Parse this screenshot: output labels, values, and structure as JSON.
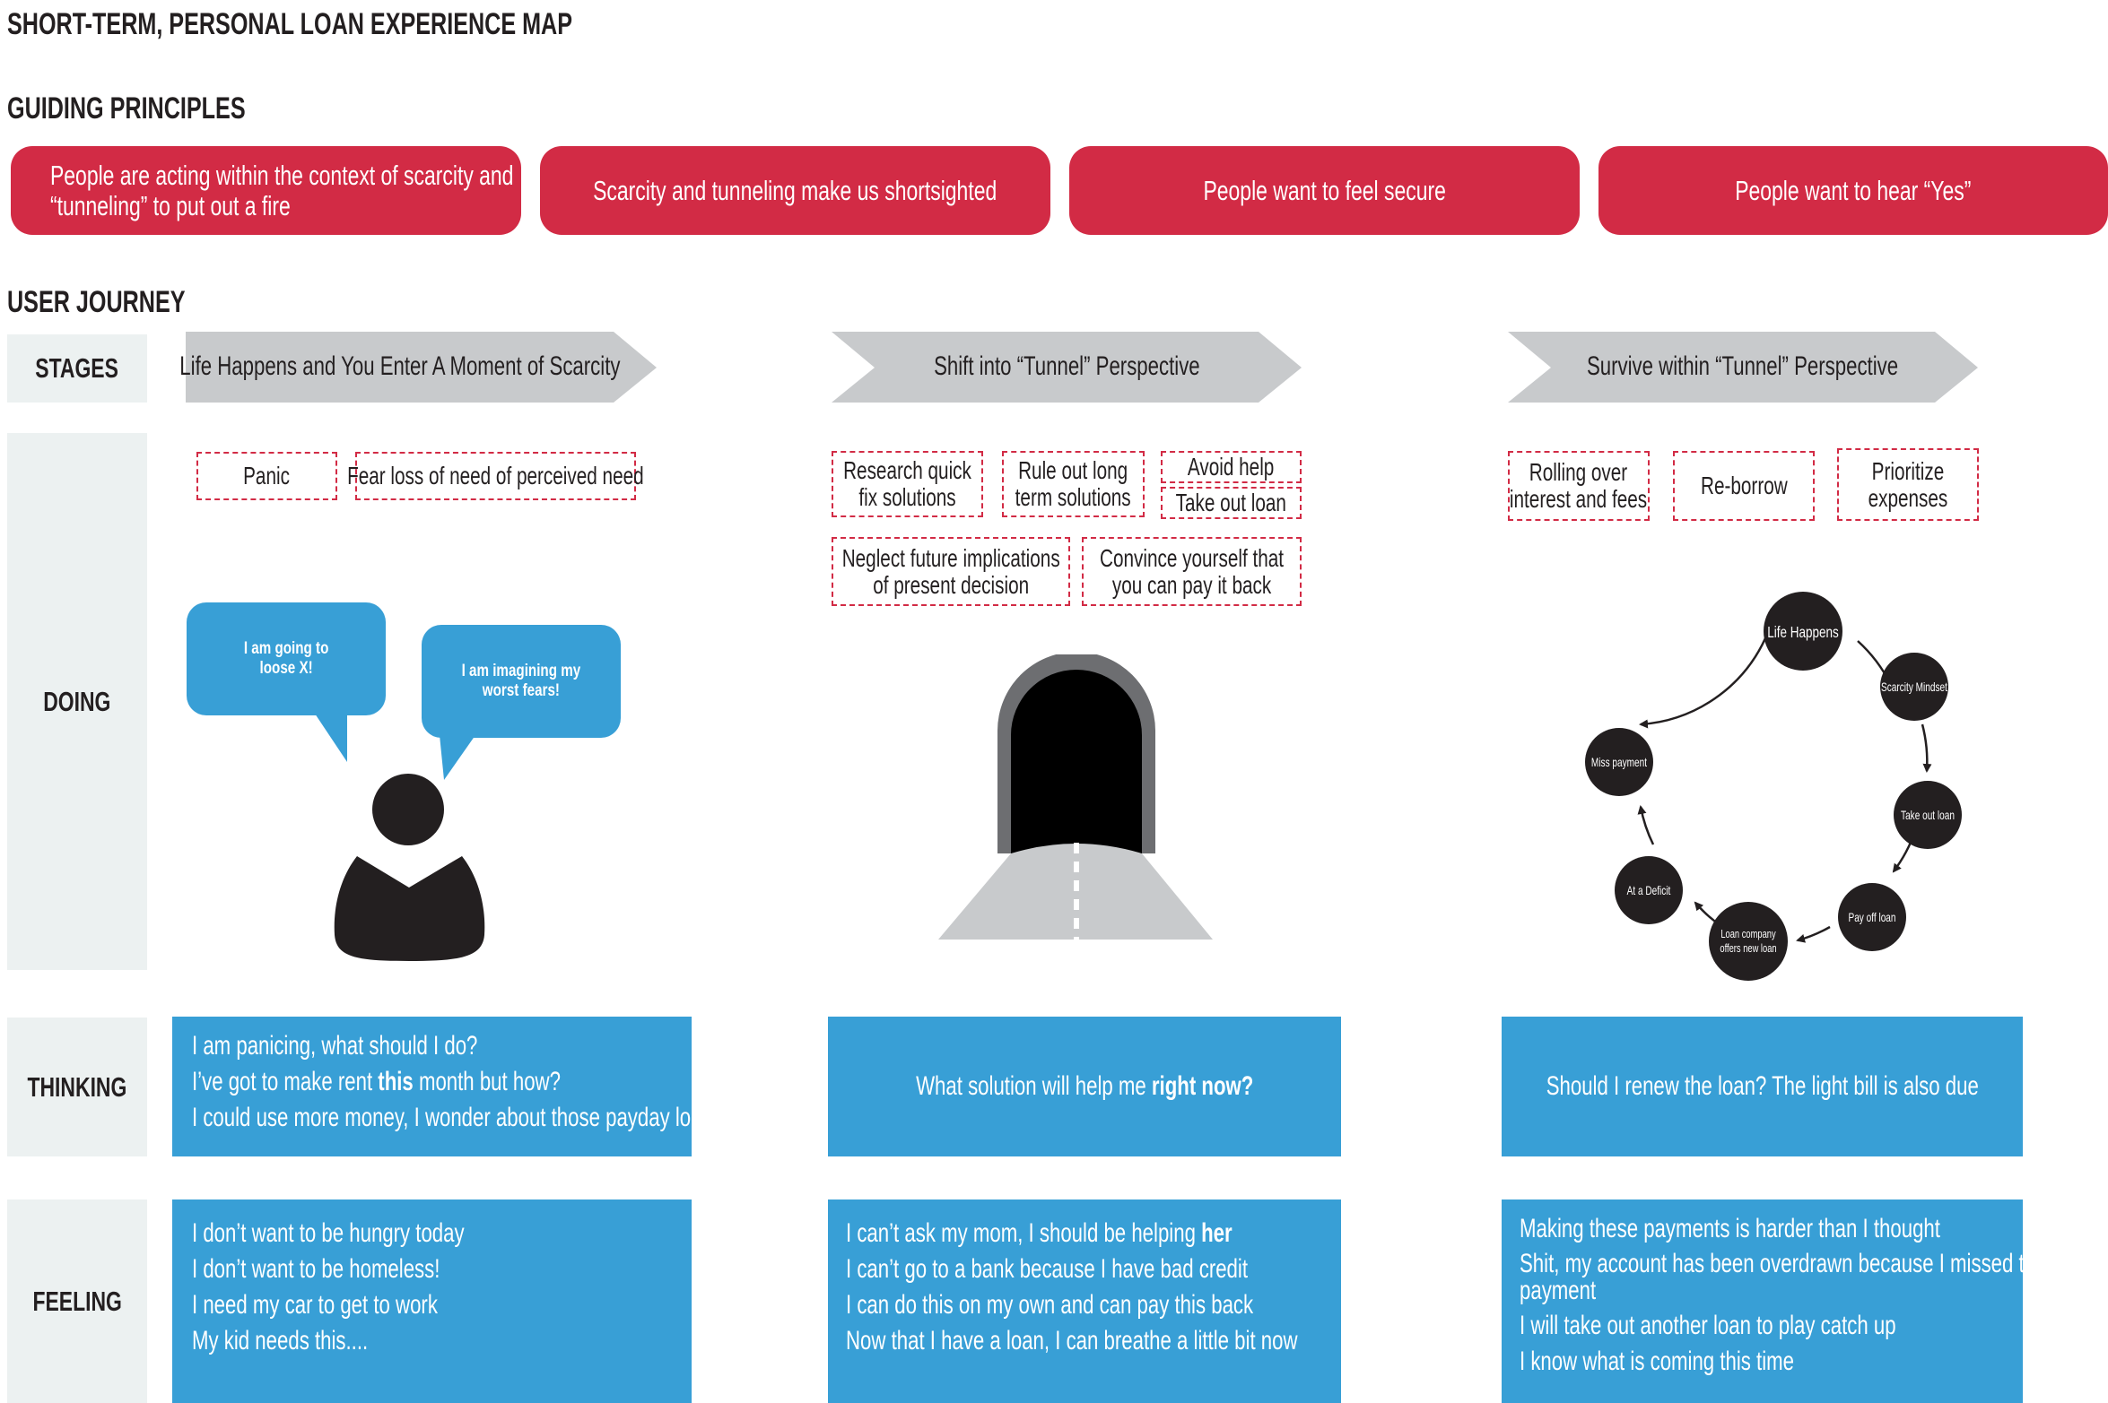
{
  "title": "SHORT-TERM, PERSONAL LOAN EXPERIENCE MAP",
  "guiding_principles": {
    "heading": "GUIDING PRINCIPLES",
    "items": [
      {
        "line1": "People are acting within the context of scarcity and",
        "line2": "“tunneling” to put out a fire"
      },
      {
        "line1": "Scarcity and tunneling make us shortsighted",
        "line2": ""
      },
      {
        "line1": "People want to feel secure",
        "line2": ""
      },
      {
        "line1": "People want to hear “Yes”",
        "line2": ""
      }
    ],
    "color": "#d22b45"
  },
  "user_journey": {
    "heading": "USER JOURNEY",
    "row_labels": {
      "stages": "STAGES",
      "doing": "DOING",
      "thinking": "THINKING",
      "feeling": "FEELING"
    },
    "stages": [
      "Life Happens and You Enter A Moment of Scarcity",
      "Shift into “Tunnel” Perspective",
      "Survive within “Tunnel” Perspective"
    ],
    "doing": {
      "col1": [
        {
          "line1": "Panic",
          "line2": ""
        },
        {
          "line1": "Fear loss of need of perceived need",
          "line2": ""
        }
      ],
      "col2": [
        {
          "line1": "Research quick",
          "line2": "fix solutions"
        },
        {
          "line1": "Rule out long",
          "line2": "term solutions"
        },
        {
          "line1": "Avoid  help",
          "line2": ""
        },
        {
          "line1": "Take out loan",
          "line2": ""
        },
        {
          "line1": "Neglect future implications",
          "line2": "of present decision"
        },
        {
          "line1": "Convince yourself that",
          "line2": "you can pay it back"
        }
      ],
      "col3": [
        {
          "line1": "Rolling over",
          "line2": "interest and fees"
        },
        {
          "line1": "Re-borrow",
          "line2": ""
        },
        {
          "line1": "Prioritize",
          "line2": "expenses"
        }
      ],
      "bubbles": [
        {
          "line1": "I am going to",
          "line2": "loose X!"
        },
        {
          "line1": "I am imagining my",
          "line2": "worst fears!"
        }
      ],
      "cycle": [
        {
          "line1": "Life Happens",
          "line2": ""
        },
        {
          "line1": "Scarcity Mindset",
          "line2": ""
        },
        {
          "line1": "Take out loan",
          "line2": ""
        },
        {
          "line1": "Pay off loan",
          "line2": ""
        },
        {
          "line1": "Loan company",
          "line2": "offers new loan"
        },
        {
          "line1": "At a Deficit",
          "line2": ""
        },
        {
          "line1": "Miss payment",
          "line2": ""
        }
      ]
    },
    "thinking": {
      "col1": [
        {
          "pre": "I am panicing, what should I do?",
          "bold": "",
          "post": ""
        },
        {
          "pre": "I’ve got to make rent ",
          "bold": "this",
          "post": " month but how?"
        },
        {
          "pre": "I could use more money, I wonder about those payday loans?",
          "bold": "",
          "post": ""
        }
      ],
      "col2": {
        "pre": "What solution will help me ",
        "bold": "right now?",
        "post": ""
      },
      "col3": {
        "pre": "Should I renew the loan? The light bill is also due",
        "bold": "",
        "post": ""
      }
    },
    "feeling": {
      "col1": [
        {
          "pre": "I don’t want to be hungry today",
          "bold": "",
          "post": ""
        },
        {
          "pre": "I don’t want to be homeless!",
          "bold": "",
          "post": ""
        },
        {
          "pre": "I need my car to get to work",
          "bold": "",
          "post": ""
        },
        {
          "pre": "My kid needs this....",
          "bold": "",
          "post": ""
        }
      ],
      "col2": [
        {
          "pre": "I can’t ask my mom, I should be helping ",
          "bold": "her",
          "post": ""
        },
        {
          "pre": "I can’t go to a bank because I have bad credit",
          "bold": "",
          "post": ""
        },
        {
          "pre": "I can do this on my own and can pay this back",
          "bold": "",
          "post": ""
        },
        {
          "pre": "Now that I have a loan, I can breathe a little bit now",
          "bold": "",
          "post": ""
        }
      ],
      "col3": [
        {
          "pre": "Making these payments is harder than I thought",
          "bold": "",
          "post": ""
        },
        {
          "pre": "Shit, my account has been overdrawn because I missed that",
          "bold": "",
          "post": ""
        },
        {
          "pre": "payment",
          "bold": "",
          "post": ""
        },
        {
          "pre": "I will take out another loan to play catch up",
          "bold": "",
          "post": ""
        },
        {
          "pre": "I know what is coming this time",
          "bold": "",
          "post": ""
        }
      ]
    },
    "colors": {
      "blue": "#389fd6",
      "stage_arrow": "#c8cacc",
      "row_label_bg": "#ecf1f1",
      "dark": "#231f20"
    }
  }
}
